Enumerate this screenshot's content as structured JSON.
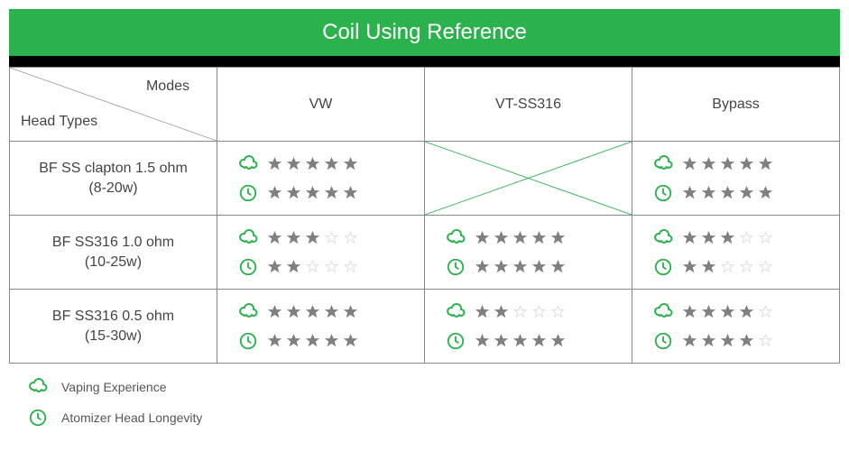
{
  "title": "Coil Using Reference",
  "header_bg": "#2bb24c",
  "header_text_color": "#ffffff",
  "blackbar_color": "#000000",
  "border_color": "#888888",
  "text_color": "#444444",
  "accent_green": "#2bb24c",
  "star_filled": "#808080",
  "star_empty": "#dddddd",
  "diag_header": {
    "top_right": "Modes",
    "bottom_left": "Head Types"
  },
  "columns": [
    "VW",
    "VT-SS316",
    "Bypass"
  ],
  "rows": [
    {
      "label_line1": "BF SS clapton 1.5 ohm",
      "label_line2": "(8-20w)",
      "cells": [
        {
          "vape": 5,
          "time": 5,
          "cross": false
        },
        {
          "vape": null,
          "time": null,
          "cross": true
        },
        {
          "vape": 5,
          "time": 5,
          "cross": false
        }
      ]
    },
    {
      "label_line1": "BF SS316 1.0 ohm",
      "label_line2": "(10-25w)",
      "cells": [
        {
          "vape": 3,
          "time": 2,
          "cross": false
        },
        {
          "vape": 5,
          "time": 5,
          "cross": false
        },
        {
          "vape": 3,
          "time": 2,
          "cross": false
        }
      ]
    },
    {
      "label_line1": "BF SS316 0.5 ohm",
      "label_line2": "(15-30w)",
      "cells": [
        {
          "vape": 5,
          "time": 5,
          "cross": false
        },
        {
          "vape": 2,
          "time": 5,
          "cross": false
        },
        {
          "vape": 4,
          "time": 4,
          "cross": false
        }
      ]
    }
  ],
  "legend": {
    "vape": "Vaping Experience",
    "time": "Atomizer Head Longevity"
  }
}
